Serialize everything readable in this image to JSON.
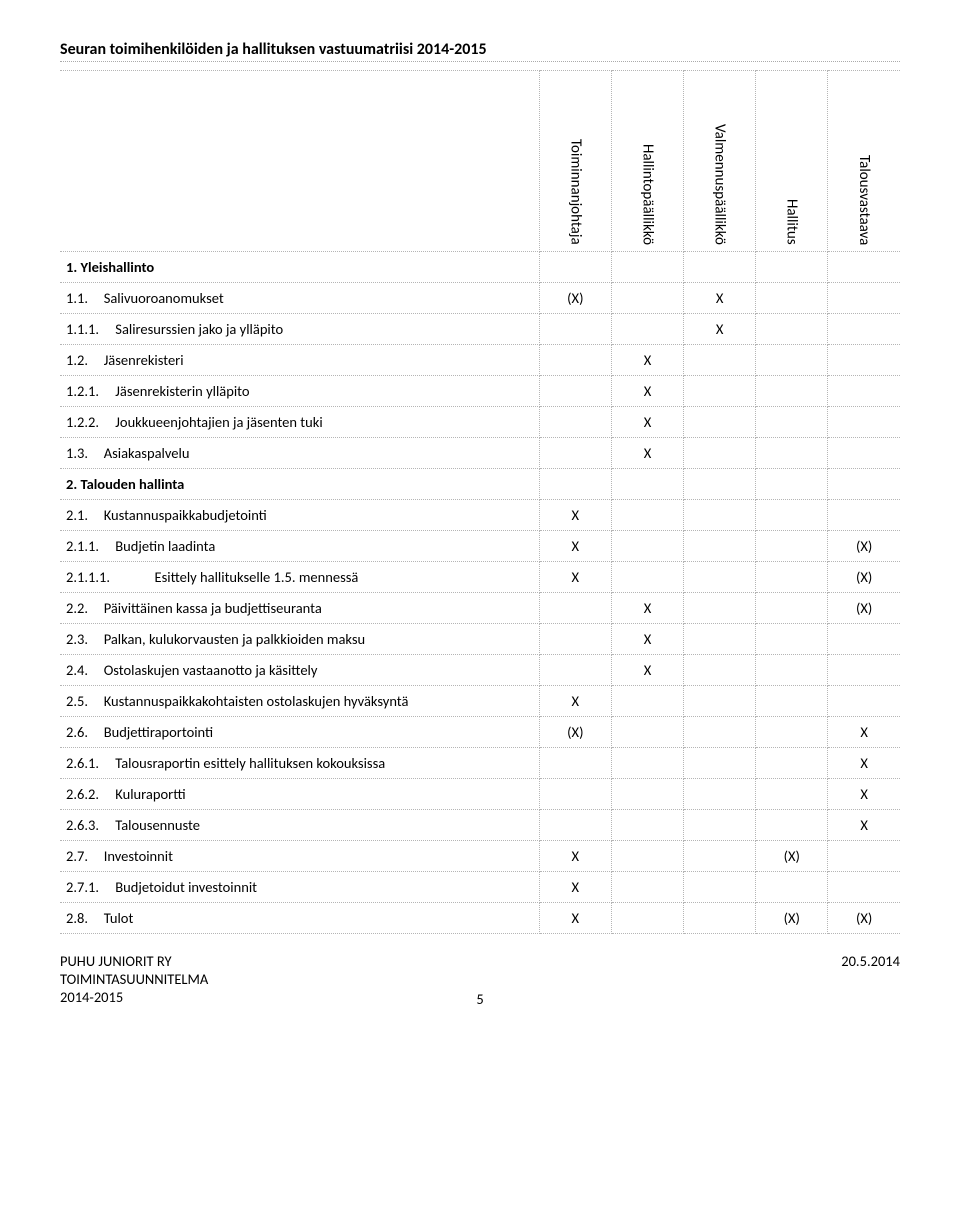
{
  "title": "Seuran toimihenkilöiden ja hallituksen vastuumatriisi 2014-2015",
  "columns": [
    "Toiminnanjohtaja",
    "Hallintopäällikkö",
    "Valmennuspäällikkö",
    "Hallitus",
    "Talousvastaava"
  ],
  "rows": [
    {
      "label": "1. Yleishallinto",
      "section": true,
      "c": [
        "",
        "",
        "",
        "",
        ""
      ]
    },
    {
      "num": "1.1.",
      "text": "Salivuoroanomukset",
      "lvl": 1,
      "c": [
        "(X)",
        "",
        "X",
        "",
        ""
      ]
    },
    {
      "num": "1.1.1.",
      "text": "Saliresurssien jako ja ylläpito",
      "lvl": 2,
      "c": [
        "",
        "",
        "X",
        "",
        ""
      ]
    },
    {
      "num": "1.2.",
      "text": "Jäsenrekisteri",
      "lvl": 1,
      "c": [
        "",
        "X",
        "",
        "",
        ""
      ]
    },
    {
      "num": "1.2.1.",
      "text": "Jäsenrekisterin ylläpito",
      "lvl": 2,
      "c": [
        "",
        "X",
        "",
        "",
        ""
      ]
    },
    {
      "num": "1.2.2.",
      "text": "Joukkueenjohtajien ja jäsenten tuki",
      "lvl": 2,
      "c": [
        "",
        "X",
        "",
        "",
        ""
      ]
    },
    {
      "num": "1.3.",
      "text": "Asiakaspalvelu",
      "lvl": 1,
      "c": [
        "",
        "X",
        "",
        "",
        ""
      ]
    },
    {
      "label": "2. Talouden hallinta",
      "section": true,
      "c": [
        "",
        "",
        "",
        "",
        ""
      ]
    },
    {
      "num": "2.1.",
      "text": "Kustannuspaikkabudjetointi",
      "lvl": 1,
      "c": [
        "X",
        "",
        "",
        "",
        ""
      ]
    },
    {
      "num": "2.1.1.",
      "text": "Budjetin laadinta",
      "lvl": 2,
      "c": [
        "X",
        "",
        "",
        "",
        "(X)"
      ]
    },
    {
      "num": "2.1.1.1.",
      "text": "Esittely hallitukselle 1.5. mennessä",
      "lvl": 3,
      "longnum": true,
      "c": [
        "X",
        "",
        "",
        "",
        "(X)"
      ]
    },
    {
      "num": "2.2.",
      "text": "Päivittäinen kassa ja budjettiseuranta",
      "lvl": 1,
      "c": [
        "",
        "X",
        "",
        "",
        "(X)"
      ]
    },
    {
      "num": "2.3.",
      "text": "Palkan, kulukorvausten ja palkkioiden maksu",
      "lvl": 1,
      "c": [
        "",
        "X",
        "",
        "",
        ""
      ]
    },
    {
      "num": "2.4.",
      "text": "Ostolaskujen vastaanotto ja käsittely",
      "lvl": 1,
      "c": [
        "",
        "X",
        "",
        "",
        ""
      ]
    },
    {
      "num": "2.5.",
      "text": "Kustannuspaikkakohtaisten ostolaskujen hyväksyntä",
      "lvl": 1,
      "c": [
        "X",
        "",
        "",
        "",
        ""
      ]
    },
    {
      "num": "2.6.",
      "text": "Budjettiraportointi",
      "lvl": 1,
      "c": [
        "(X)",
        "",
        "",
        "",
        "X"
      ]
    },
    {
      "num": "2.6.1.",
      "text": "Talousraportin esittely hallituksen kokouksissa",
      "lvl": 2,
      "c": [
        "",
        "",
        "",
        "",
        "X"
      ]
    },
    {
      "num": "2.6.2.",
      "text": "Kuluraportti",
      "lvl": 2,
      "c": [
        "",
        "",
        "",
        "",
        "X"
      ]
    },
    {
      "num": "2.6.3.",
      "text": "Talousennuste",
      "lvl": 2,
      "c": [
        "",
        "",
        "",
        "",
        "X"
      ]
    },
    {
      "num": "2.7.",
      "text": "Investoinnit",
      "lvl": 1,
      "c": [
        "X",
        "",
        "",
        "(X)",
        ""
      ]
    },
    {
      "num": "2.7.1.",
      "text": "Budjetoidut investoinnit",
      "lvl": 2,
      "c": [
        "X",
        "",
        "",
        "",
        ""
      ]
    },
    {
      "num": "2.8.",
      "text": "Tulot",
      "lvl": 1,
      "c": [
        "X",
        "",
        "",
        "(X)",
        "(X)"
      ]
    }
  ],
  "footer": {
    "left1": "PUHU JUNIORIT RY",
    "left2": "TOIMINTASUUNNITELMA",
    "left3": "2014-2015",
    "right": "20.5.2014",
    "page": "5"
  }
}
